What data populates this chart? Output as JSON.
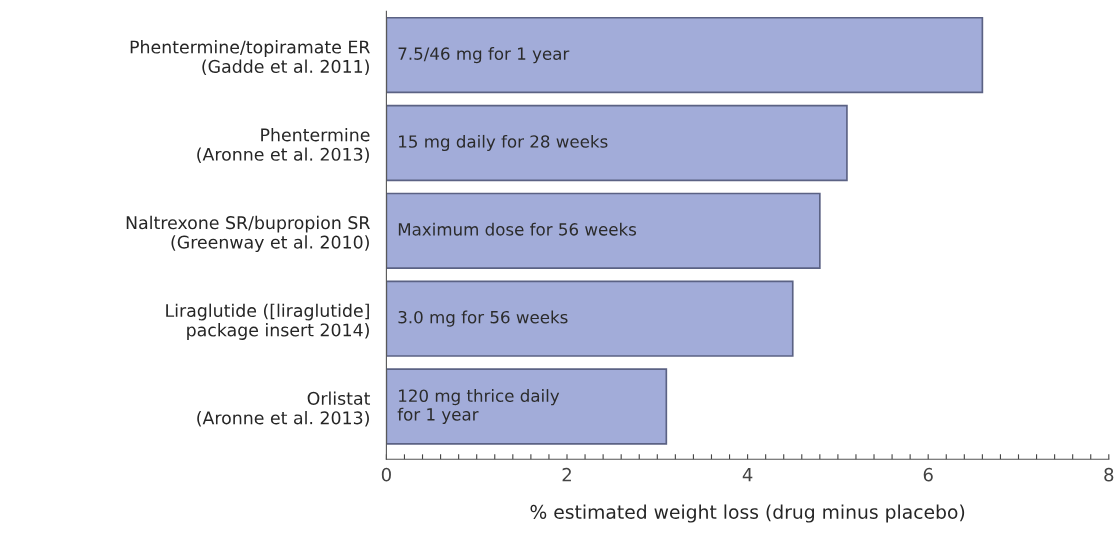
{
  "chart_data": {
    "type": "bar",
    "orientation": "horizontal",
    "categories": [
      "Phentermine/topiramate ER\n(Gadde et al. 2011)",
      "Phentermine\n(Aronne et al. 2013)",
      "Naltrexone SR/bupropion SR\n(Greenway et al. 2010)",
      "Liraglutide ([liraglutide]\npackage insert 2014)",
      "Orlistat\n(Aronne et al. 2013)"
    ],
    "values": [
      6.6,
      5.1,
      4.8,
      4.5,
      3.1
    ],
    "color": "#a2acd9",
    "annotations": [
      "7.5/46 mg for 1 year",
      "15 mg daily for 28 weeks",
      "Maximum dose for 56 weeks",
      "3.0 mg for 56 weeks",
      "120 mg thrice daily\nfor 1 year"
    ],
    "xlabel": "% estimated weight loss (drug minus placebo)",
    "xlim": [
      0,
      8
    ],
    "xticks": [
      0,
      {
        "value": 0.2,
        "label": null
      },
      {
        "value": 0.4,
        "label": null
      },
      {
        "value": 0.6,
        "label": null
      },
      {
        "value": 0.8,
        "label": null
      },
      {
        "value": 1.0,
        "label": null
      },
      {
        "value": 1.2,
        "label": null
      },
      {
        "value": 1.4,
        "label": null
      },
      {
        "value": 1.6,
        "label": null
      },
      {
        "value": 1.8,
        "label": null
      },
      2,
      {
        "value": 2.2,
        "label": null
      },
      {
        "value": 2.4,
        "label": null
      },
      {
        "value": 2.6,
        "label": null
      },
      {
        "value": 2.8,
        "label": null
      },
      {
        "value": 3.0,
        "label": null
      },
      {
        "value": 3.2,
        "label": null
      },
      {
        "value": 3.4,
        "label": null
      },
      {
        "value": 3.6,
        "label": null
      },
      {
        "value": 3.8,
        "label": null
      },
      4,
      {
        "value": 4.2,
        "label": null
      },
      {
        "value": 4.4,
        "label": null
      },
      {
        "value": 4.6,
        "label": null
      },
      {
        "value": 4.8,
        "label": null
      },
      {
        "value": 5.0,
        "label": null
      },
      {
        "value": 5.2,
        "label": null
      },
      {
        "value": 5.4,
        "label": null
      },
      {
        "value": 5.6,
        "label": null
      },
      {
        "value": 5.8,
        "label": null
      },
      6,
      {
        "value": 6.2,
        "label": null
      },
      {
        "value": 6.4,
        "label": null
      },
      {
        "value": 6.6,
        "label": null
      },
      {
        "value": 6.8,
        "label": null
      },
      {
        "value": 7.0,
        "label": null
      },
      {
        "value": 7.2,
        "label": null
      },
      {
        "value": 7.4,
        "label": null
      },
      {
        "value": 7.6,
        "label": null
      },
      {
        "value": 7.8,
        "label": null
      },
      8
    ],
    "tick_labels": "x",
    "grid": false,
    "legend": false
  }
}
